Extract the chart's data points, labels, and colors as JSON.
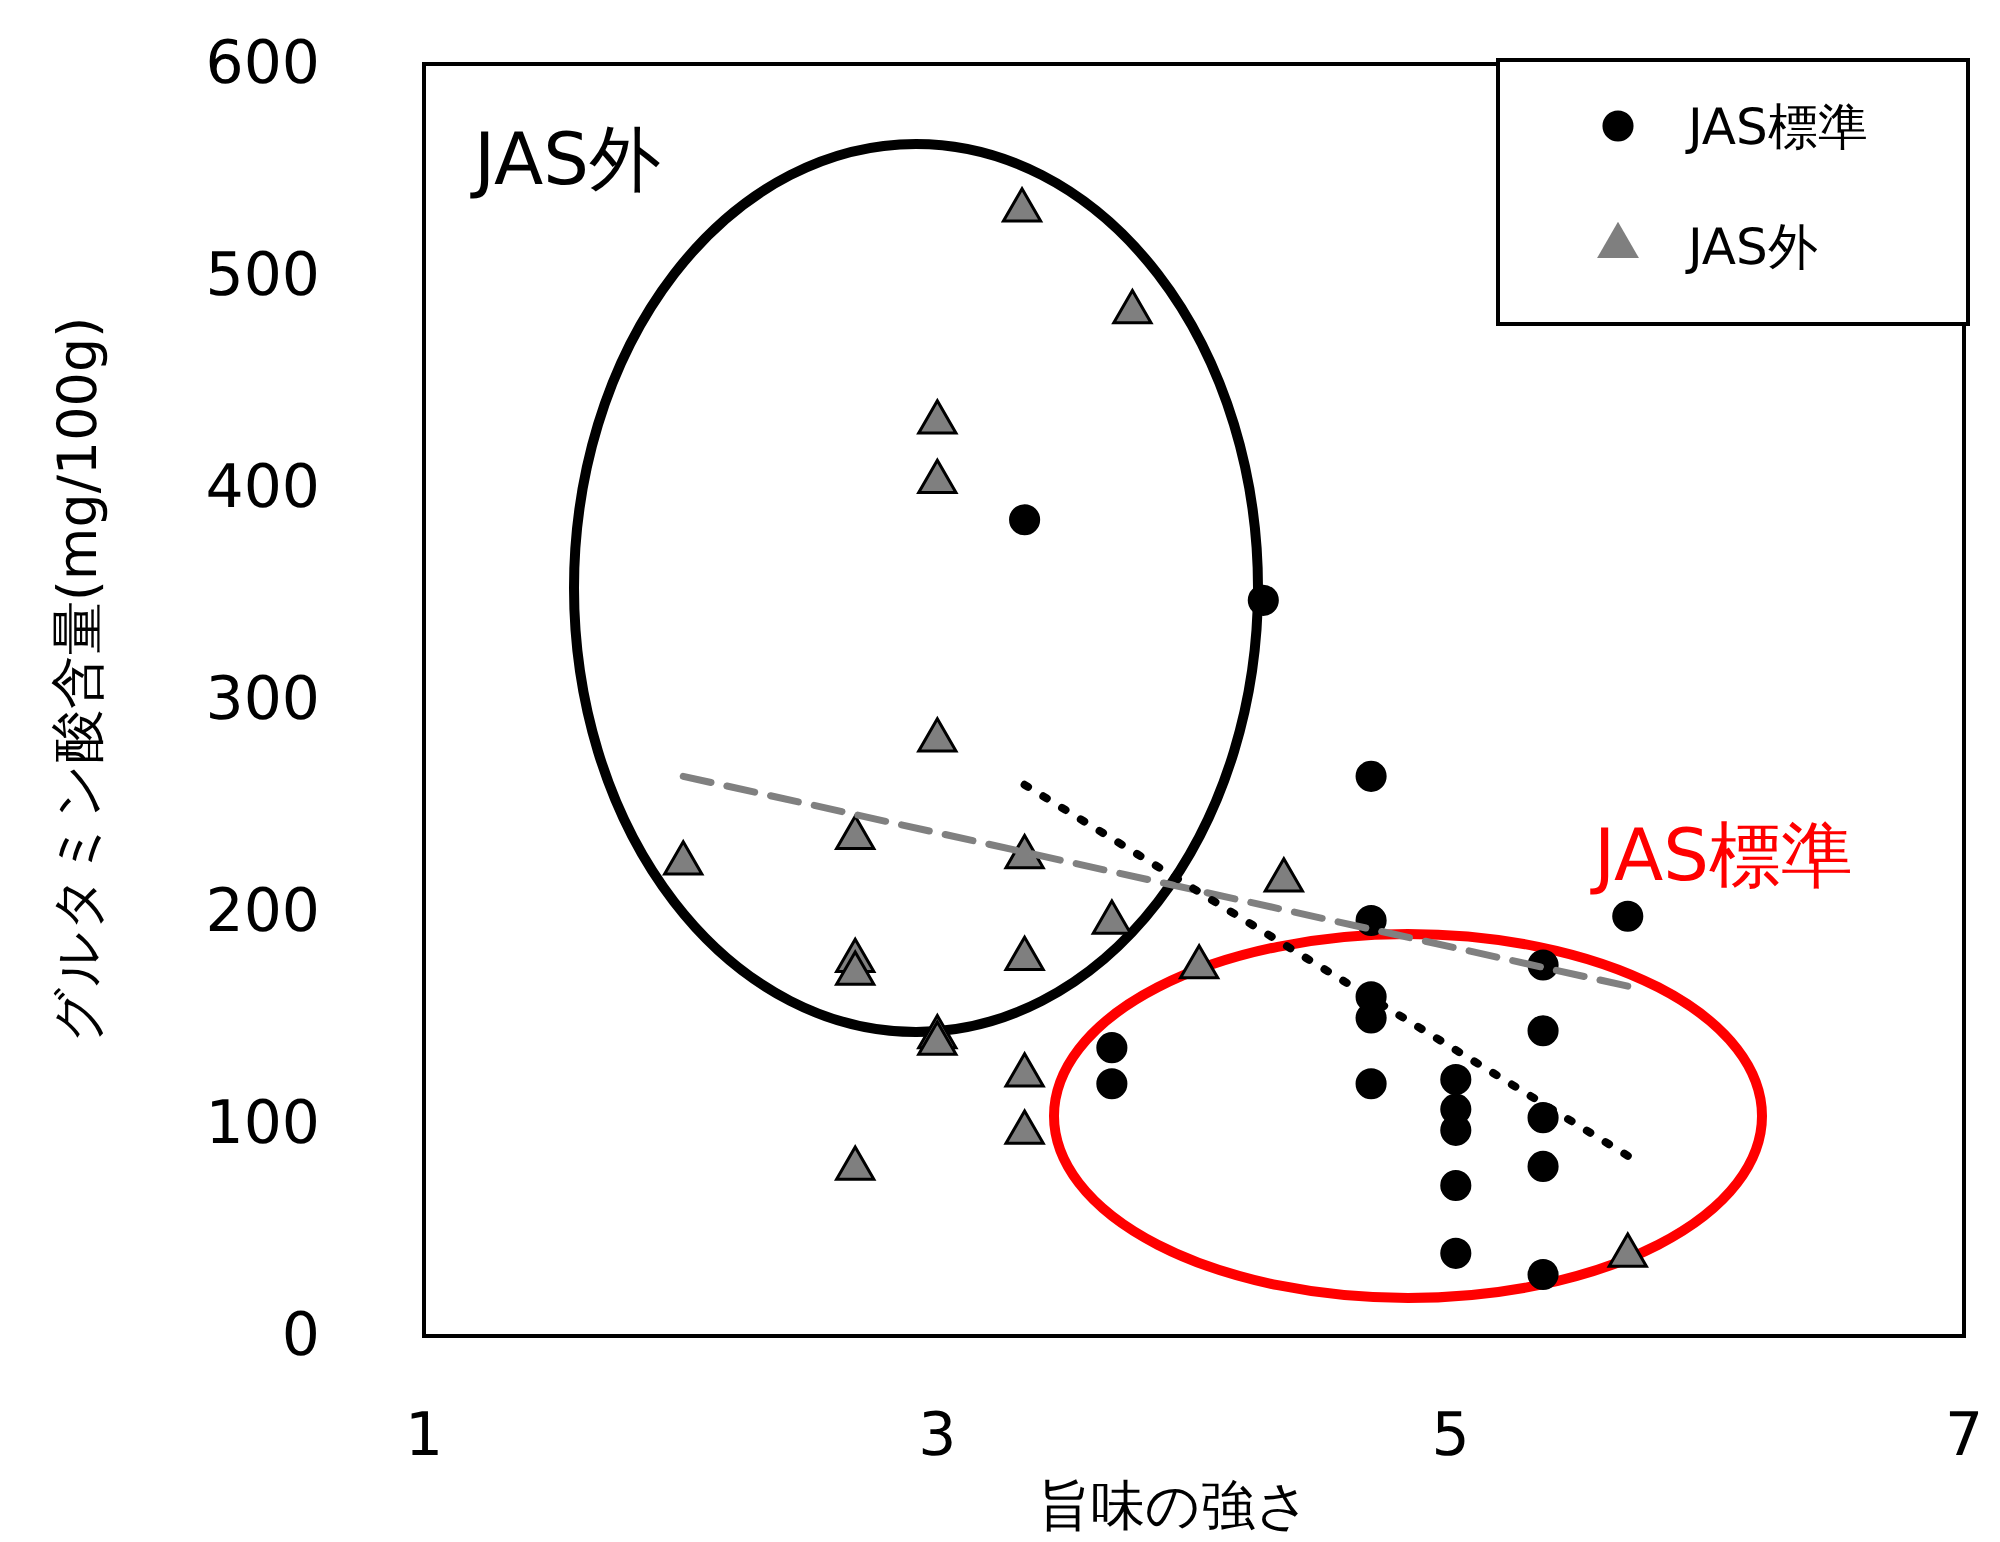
{
  "chart_data": {
    "type": "scatter",
    "xlabel": "旨味の強さ",
    "ylabel": "グルタミン酸含量(mg/100g)",
    "xlim": [
      1,
      7
    ],
    "xticks": [
      1,
      3,
      5,
      7
    ],
    "ylim": [
      0,
      600
    ],
    "yticks": [
      0,
      100,
      200,
      300,
      400,
      500,
      600
    ],
    "grid": false,
    "legend": "top right",
    "annotations": [
      "JAS外",
      "JAS標準"
    ],
    "series": [
      {
        "name": "JAS標準",
        "marker": "circle",
        "color": "#000000",
        "x": [
          3.34,
          4.27,
          4.69,
          4.69,
          5.69,
          5.36,
          4.69,
          4.69,
          5.36,
          4.69,
          5.02,
          5.02,
          5.02,
          5.36,
          5.36,
          5.02,
          5.02,
          5.36,
          3.68,
          3.68
        ],
        "values": [
          385,
          347,
          264,
          196,
          198,
          175,
          160,
          150,
          144,
          119,
          121,
          107,
          97,
          103,
          80,
          71,
          39,
          29,
          136,
          119
        ]
      },
      {
        "name": "JAS外",
        "marker": "triangle",
        "color": "#7f7f7f",
        "x": [
          3.33,
          3.76,
          3.0,
          3.0,
          3.0,
          2.01,
          2.68,
          3.34,
          3.68,
          2.68,
          2.68,
          3.34,
          3.0,
          3.0,
          4.02,
          4.35,
          3.34,
          3.34,
          2.68,
          5.69
        ],
        "values": [
          531,
          483,
          431,
          403,
          281,
          223,
          235,
          226,
          195,
          177,
          171,
          178,
          141,
          138,
          174,
          215,
          123,
          96,
          79,
          38
        ]
      },
      {
        "type": "line",
        "line_style": "dashed",
        "color": "#808080",
        "x": [
          2.01,
          5.69
        ],
        "values": [
          264,
          165
        ]
      },
      {
        "type": "line",
        "line_style": "dotted",
        "color": "#000000",
        "x": [
          3.34,
          5.69
        ],
        "values": [
          260,
          85
        ]
      }
    ]
  }
}
